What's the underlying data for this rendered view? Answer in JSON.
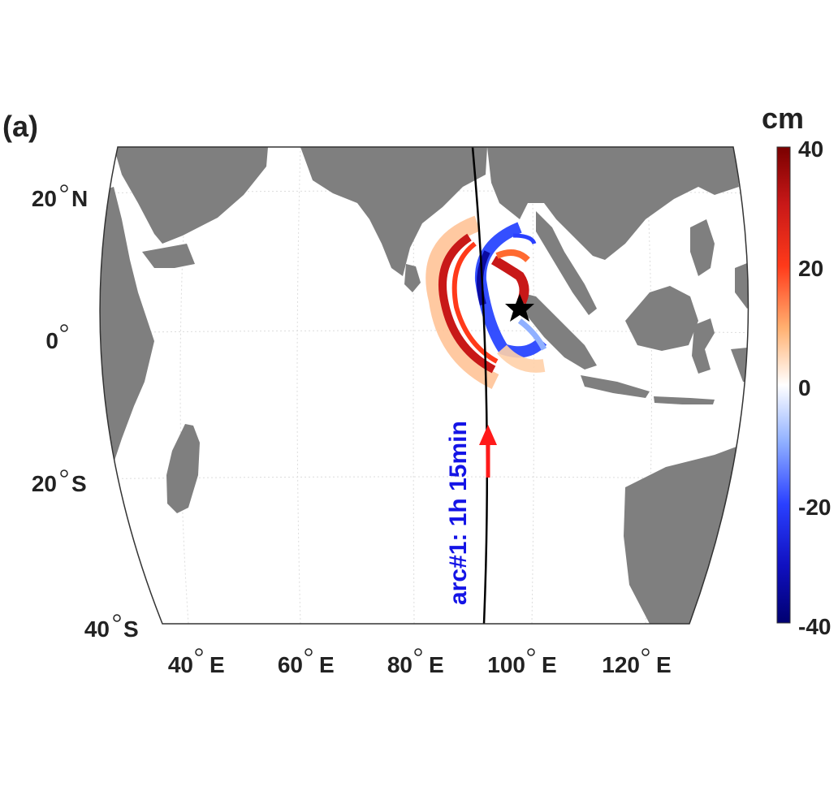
{
  "panel_label": "(a)",
  "colorbar": {
    "unit": "cm",
    "ticks": [
      "40",
      "20",
      "0",
      "-20",
      "-40"
    ]
  },
  "lat_labels": [
    {
      "deg": "20",
      "hemi": "N"
    },
    {
      "deg": "0",
      "hemi": ""
    },
    {
      "deg": "20",
      "hemi": "S"
    },
    {
      "deg": "40",
      "hemi": "S"
    }
  ],
  "lon_labels": [
    {
      "deg": "40",
      "hemi": "E"
    },
    {
      "deg": "60",
      "hemi": "E"
    },
    {
      "deg": "80",
      "hemi": "E"
    },
    {
      "deg": "100",
      "hemi": "E"
    },
    {
      "deg": "120",
      "hemi": "E"
    }
  ],
  "track_label": "arc#1: 1h 15min",
  "colors": {
    "land": "#7f7f7f",
    "ocean": "#ffffff",
    "track": "#000000",
    "track_label": "#1414e6",
    "arrow": "#ff1a1a",
    "epicenter": "#000000"
  }
}
